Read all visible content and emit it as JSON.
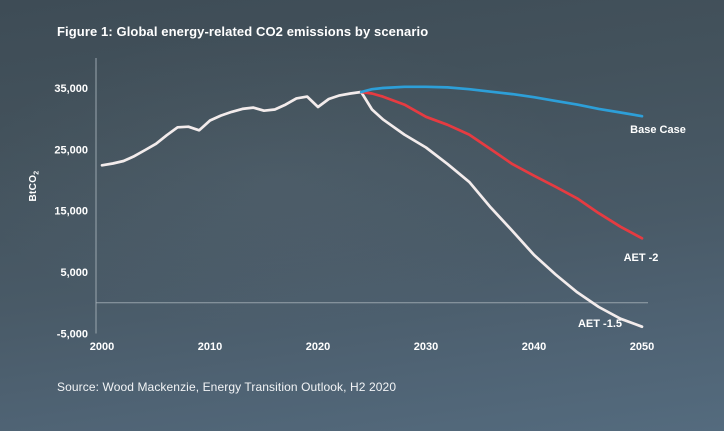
{
  "figure": {
    "title": "Figure 1: Global energy-related CO2 emissions by scenario",
    "source": "Source: Wood Mackenzie, Energy Transition Outlook, H2 2020"
  },
  "chart_data": {
    "type": "line",
    "title": "Figure 1: Global energy-related CO2 emissions by scenario",
    "xlabel": "",
    "ylabel": "BtCO",
    "ylabel_sub": "2",
    "xlim": [
      2000,
      2050
    ],
    "ylim": [
      -5000,
      35000
    ],
    "xticks": [
      2000,
      2010,
      2020,
      2030,
      2040,
      2050
    ],
    "yticks": [
      35000,
      25000,
      15000,
      5000,
      -5000
    ],
    "grid": "zero-line-only",
    "legend_position": "end-of-line-labels",
    "colors": {
      "background_top": "#3e4c56",
      "background_bottom": "#546b7e",
      "axis": "#9aa6ae",
      "zero_gridline": "#a3aeb5",
      "text": "#ffffff",
      "base_case": "#2d9fd8",
      "aet_2": "#e63b41",
      "aet_15": "#f3ecec"
    },
    "series": [
      {
        "name": "AET -1.5",
        "color": "#f3ecec",
        "label_anchor": [
          600,
          327
        ],
        "x": [
          2000,
          2001,
          2002,
          2003,
          2004,
          2005,
          2006,
          2007,
          2008,
          2009,
          2010,
          2011,
          2012,
          2013,
          2014,
          2015,
          2016,
          2017,
          2018,
          2019,
          2020,
          2021,
          2022,
          2023,
          2024,
          2025,
          2026,
          2028,
          2030,
          2032,
          2034,
          2036,
          2038,
          2040,
          2042,
          2044,
          2046,
          2048,
          2050
        ],
        "y": [
          22400,
          22700,
          23100,
          23900,
          24900,
          25900,
          27300,
          28600,
          28700,
          28100,
          29700,
          30500,
          31100,
          31600,
          31800,
          31300,
          31500,
          32300,
          33300,
          33600,
          31900,
          33200,
          33800,
          34100,
          34350,
          31500,
          29900,
          27400,
          25300,
          22600,
          19700,
          15500,
          11700,
          7800,
          4600,
          1700,
          -700,
          -2600,
          -3900
        ]
      },
      {
        "name": "AET -2",
        "color": "#e63b41",
        "label_anchor": [
          641,
          261
        ],
        "x": [
          2024,
          2025,
          2026,
          2028,
          2030,
          2032,
          2034,
          2036,
          2038,
          2040,
          2042,
          2044,
          2046,
          2048,
          2050
        ],
        "y": [
          34350,
          34100,
          33600,
          32300,
          30300,
          29000,
          27400,
          25000,
          22600,
          20700,
          18900,
          17000,
          14600,
          12400,
          10500
        ]
      },
      {
        "name": "Base Case",
        "color": "#2d9fd8",
        "label_anchor": [
          658,
          133
        ],
        "x": [
          2024,
          2025,
          2026,
          2028,
          2030,
          2032,
          2034,
          2036,
          2038,
          2040,
          2042,
          2044,
          2046,
          2048,
          2050
        ],
        "y": [
          34350,
          34800,
          35000,
          35200,
          35200,
          35100,
          34800,
          34400,
          34000,
          33500,
          32900,
          32300,
          31600,
          31000,
          30400
        ]
      }
    ]
  }
}
